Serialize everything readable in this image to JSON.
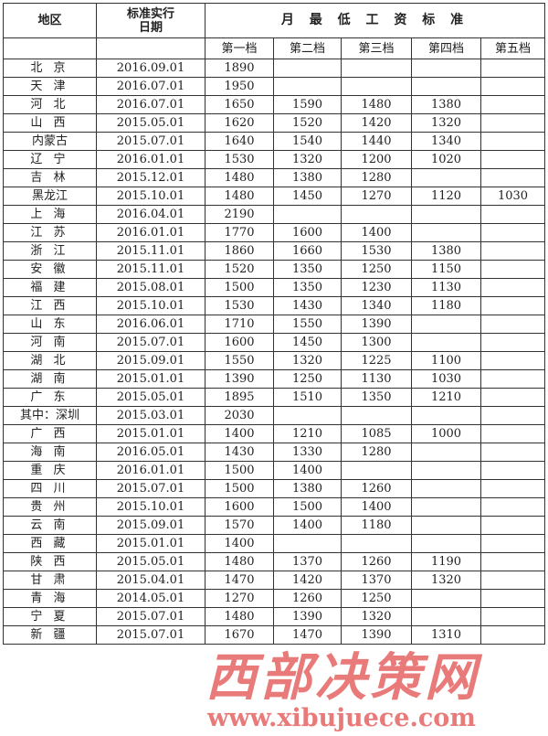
{
  "header": {
    "region": "地区",
    "date_line1": "标准实行",
    "date_line2": "日期",
    "standard": "月 最 低 工 资 标 准",
    "tiers": [
      "第一档",
      "第二档",
      "第三档",
      "第四档",
      "第五档"
    ]
  },
  "rows": [
    [
      "北 京",
      "2016.09.01",
      "1890",
      "",
      "",
      "",
      ""
    ],
    [
      "天 津",
      "2016.07.01",
      "1950",
      "",
      "",
      "",
      ""
    ],
    [
      "河 北",
      "2016.07.01",
      "1650",
      "1590",
      "1480",
      "1380",
      ""
    ],
    [
      "山 西",
      "2015.05.01",
      "1620",
      "1520",
      "1420",
      "1320",
      ""
    ],
    [
      "内蒙古",
      "2015.07.01",
      "1640",
      "1540",
      "1440",
      "1340",
      ""
    ],
    [
      "辽 宁",
      "2016.01.01",
      "1530",
      "1320",
      "1200",
      "1020",
      ""
    ],
    [
      "吉 林",
      "2015.12.01",
      "1480",
      "1380",
      "1280",
      "",
      ""
    ],
    [
      "黑龙江",
      "2015.10.01",
      "1480",
      "1450",
      "1270",
      "1120",
      "1030"
    ],
    [
      "上 海",
      "2016.04.01",
      "2190",
      "",
      "",
      "",
      ""
    ],
    [
      "江 苏",
      "2016.01.01",
      "1770",
      "1600",
      "1400",
      "",
      ""
    ],
    [
      "浙 江",
      "2015.11.01",
      "1860",
      "1660",
      "1530",
      "1380",
      ""
    ],
    [
      "安 徽",
      "2015.11.01",
      "1520",
      "1350",
      "1250",
      "1150",
      ""
    ],
    [
      "福 建",
      "2015.08.01",
      "1500",
      "1350",
      "1230",
      "1130",
      ""
    ],
    [
      "江 西",
      "2015.10.01",
      "1530",
      "1430",
      "1340",
      "1180",
      ""
    ],
    [
      "山 东",
      "2016.06.01",
      "1710",
      "1550",
      "1390",
      "",
      ""
    ],
    [
      "河 南",
      "2015.07.01",
      "1600",
      "1450",
      "1300",
      "",
      ""
    ],
    [
      "湖 北",
      "2015.09.01",
      "1550",
      "1320",
      "1225",
      "1100",
      ""
    ],
    [
      "湖 南",
      "2015.01.01",
      "1390",
      "1250",
      "1130",
      "1030",
      ""
    ],
    [
      "广 东",
      "2015.05.01",
      "1895",
      "1510",
      "1350",
      "1210",
      ""
    ],
    [
      "其中：深圳",
      "2015.03.01",
      "2030",
      "",
      "",
      "",
      ""
    ],
    [
      "广 西",
      "2015.01.01",
      "1400",
      "1210",
      "1085",
      "1000",
      ""
    ],
    [
      "海 南",
      "2016.05.01",
      "1430",
      "1330",
      "1280",
      "",
      ""
    ],
    [
      "重 庆",
      "2016.01.01",
      "1500",
      "1400",
      "",
      "",
      ""
    ],
    [
      "四 川",
      "2015.07.01",
      "1500",
      "1380",
      "1260",
      "",
      ""
    ],
    [
      "贵 州",
      "2015.10.01",
      "1600",
      "1500",
      "1400",
      "",
      ""
    ],
    [
      "云 南",
      "2015.09.01",
      "1570",
      "1400",
      "1180",
      "",
      ""
    ],
    [
      "西 藏",
      "2015.01.01",
      "1400",
      "",
      "",
      "",
      ""
    ],
    [
      "陕 西",
      "2015.05.01",
      "1480",
      "1370",
      "1260",
      "1190",
      ""
    ],
    [
      "甘 肃",
      "2015.04.01",
      "1470",
      "1420",
      "1370",
      "1320",
      ""
    ],
    [
      "青 海",
      "2014.05.01",
      "1270",
      "1260",
      "1250",
      "",
      ""
    ],
    [
      "宁 夏",
      "2015.07.01",
      "1480",
      "1390",
      "1320",
      "",
      ""
    ],
    [
      "新 疆",
      "2015.07.01",
      "1670",
      "1470",
      "1390",
      "1310",
      ""
    ]
  ],
  "watermark": {
    "name": "西部决策网",
    "url": "www.xibujuece.com",
    "color": "#e14646"
  }
}
